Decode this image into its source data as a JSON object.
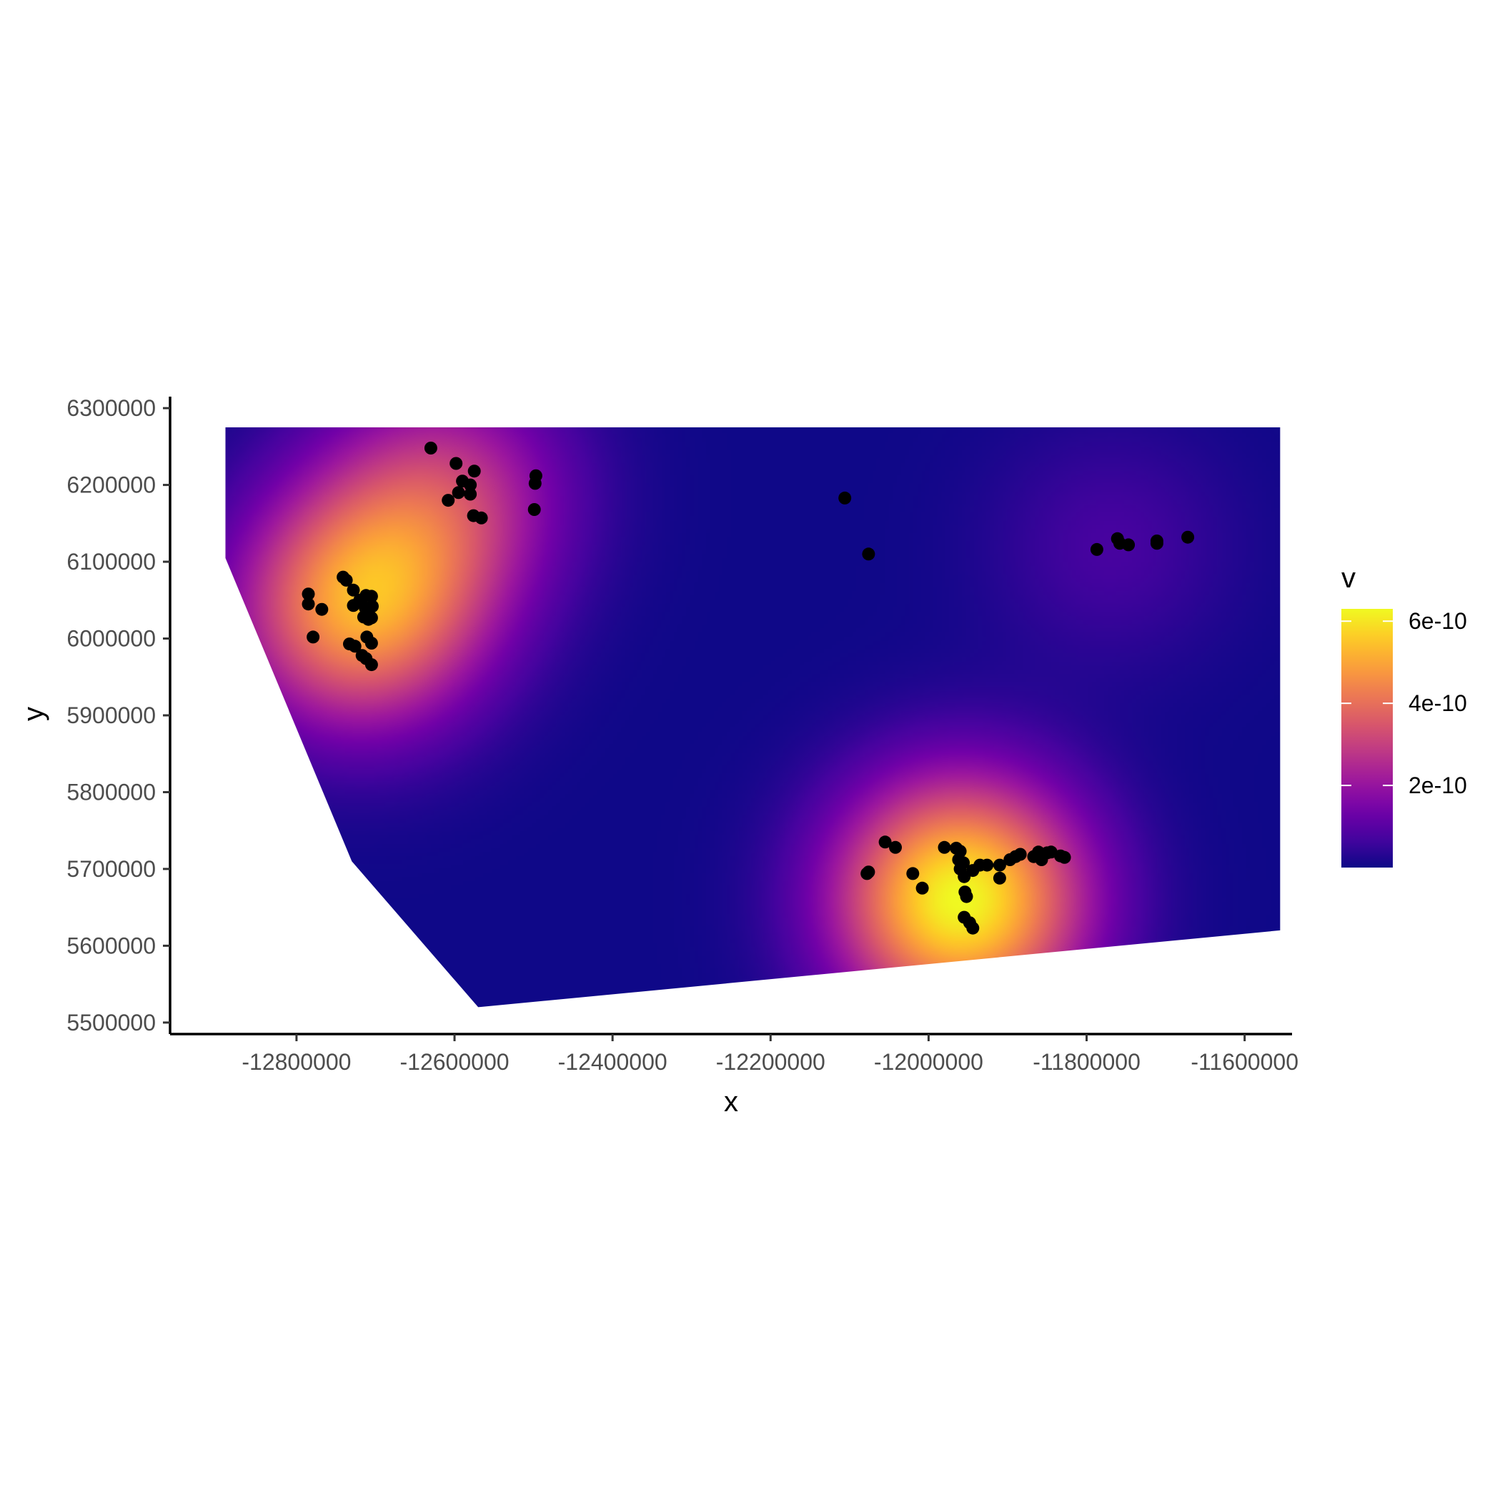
{
  "chart_data": {
    "type": "heatmap",
    "title": "",
    "xlabel": "x",
    "ylabel": "y",
    "xlim": [
      -12960000,
      -11540000
    ],
    "ylim": [
      5485000,
      6315000
    ],
    "x_ticks": [
      -12800000,
      -12600000,
      -12400000,
      -12200000,
      -12000000,
      -11800000,
      -11600000
    ],
    "x_tick_labels": [
      "-12800000",
      "-12600000",
      "-12400000",
      "-12200000",
      "-12000000",
      "-11800000",
      "-11600000"
    ],
    "y_ticks": [
      5500000,
      5600000,
      5700000,
      5800000,
      5900000,
      6000000,
      6100000,
      6200000,
      6300000
    ],
    "y_tick_labels": [
      "5500000",
      "5600000",
      "5700000",
      "5800000",
      "5900000",
      "6000000",
      "6100000",
      "6200000",
      "6300000"
    ],
    "grid": false,
    "colorscale": "plasma",
    "colorscale_colors": [
      "#0d0887",
      "#46039f",
      "#7201a8",
      "#9c179e",
      "#bd3786",
      "#d8576b",
      "#ed7953",
      "#fb9f3a",
      "#fdca26",
      "#f0f921"
    ],
    "legend": {
      "title": "v",
      "position": "right",
      "range": [
        0,
        6.3e-10
      ],
      "breaks": [
        2e-10,
        4e-10,
        6e-10
      ],
      "labels": [
        "2e-10",
        "4e-10",
        "6e-10"
      ]
    },
    "surface_boundary": [
      [
        -12890000,
        6275000
      ],
      [
        -11555000,
        6275000
      ],
      [
        -11555000,
        5620000
      ],
      [
        -12570000,
        5520000
      ],
      [
        -12730000,
        5710000
      ],
      [
        -12890000,
        6105000
      ]
    ],
    "surface_peaks": [
      {
        "x": -12720000,
        "y": 6040000,
        "v": 4.8e-10
      },
      {
        "x": -12610000,
        "y": 6190000,
        "v": 2.5e-10
      },
      {
        "x": -11960000,
        "y": 5660000,
        "v": 6.3e-10
      },
      {
        "x": -11770000,
        "y": 6120000,
        "v": 7e-11
      }
    ],
    "points": [
      {
        "x": -12630000,
        "y": 6248000
      },
      {
        "x": -12598000,
        "y": 6228000
      },
      {
        "x": -12590000,
        "y": 6205000
      },
      {
        "x": -12575000,
        "y": 6218000
      },
      {
        "x": -12580000,
        "y": 6200000
      },
      {
        "x": -12595000,
        "y": 6190000
      },
      {
        "x": -12608000,
        "y": 6180000
      },
      {
        "x": -12580000,
        "y": 6188000
      },
      {
        "x": -12576000,
        "y": 6160000
      },
      {
        "x": -12566000,
        "y": 6157000
      },
      {
        "x": -12497000,
        "y": 6212000
      },
      {
        "x": -12498000,
        "y": 6202000
      },
      {
        "x": -12499000,
        "y": 6168000
      },
      {
        "x": -12741000,
        "y": 6080000
      },
      {
        "x": -12737000,
        "y": 6076000
      },
      {
        "x": -12728000,
        "y": 6063000
      },
      {
        "x": -12720000,
        "y": 6050000
      },
      {
        "x": -12712000,
        "y": 6056000
      },
      {
        "x": -12705000,
        "y": 6055000
      },
      {
        "x": -12728000,
        "y": 6043000
      },
      {
        "x": -12713000,
        "y": 6040000
      },
      {
        "x": -12704000,
        "y": 6042000
      },
      {
        "x": -12715000,
        "y": 6028000
      },
      {
        "x": -12709000,
        "y": 6025000
      },
      {
        "x": -12705000,
        "y": 6027000
      },
      {
        "x": -12785000,
        "y": 6058000
      },
      {
        "x": -12785000,
        "y": 6045000
      },
      {
        "x": -12768000,
        "y": 6038000
      },
      {
        "x": -12779000,
        "y": 6002000
      },
      {
        "x": -12733000,
        "y": 5993000
      },
      {
        "x": -12726000,
        "y": 5990000
      },
      {
        "x": -12711000,
        "y": 6002000
      },
      {
        "x": -12705000,
        "y": 5994000
      },
      {
        "x": -12717000,
        "y": 5978000
      },
      {
        "x": -12712000,
        "y": 5974000
      },
      {
        "x": -12705000,
        "y": 5966000
      },
      {
        "x": -12106000,
        "y": 6183000
      },
      {
        "x": -12076000,
        "y": 6110000
      },
      {
        "x": -11787000,
        "y": 6116000
      },
      {
        "x": -11761000,
        "y": 6130000
      },
      {
        "x": -11758000,
        "y": 6124000
      },
      {
        "x": -11747000,
        "y": 6122000
      },
      {
        "x": -11711000,
        "y": 6127000
      },
      {
        "x": -11711000,
        "y": 6124000
      },
      {
        "x": -11672000,
        "y": 6132000
      },
      {
        "x": -12055000,
        "y": 5735000
      },
      {
        "x": -12042000,
        "y": 5728000
      },
      {
        "x": -12078000,
        "y": 5694000
      },
      {
        "x": -12076000,
        "y": 5696000
      },
      {
        "x": -12020000,
        "y": 5694000
      },
      {
        "x": -12008000,
        "y": 5675000
      },
      {
        "x": -11980000,
        "y": 5728000
      },
      {
        "x": -11965000,
        "y": 5727000
      },
      {
        "x": -11960000,
        "y": 5723000
      },
      {
        "x": -11962000,
        "y": 5712000
      },
      {
        "x": -11956000,
        "y": 5708000
      },
      {
        "x": -11960000,
        "y": 5700000
      },
      {
        "x": -11955000,
        "y": 5690000
      },
      {
        "x": -11944000,
        "y": 5698000
      },
      {
        "x": -11935000,
        "y": 5705000
      },
      {
        "x": -11926000,
        "y": 5705000
      },
      {
        "x": -11954000,
        "y": 5670000
      },
      {
        "x": -11952000,
        "y": 5664000
      },
      {
        "x": -11955000,
        "y": 5637000
      },
      {
        "x": -11948000,
        "y": 5630000
      },
      {
        "x": -11944000,
        "y": 5623000
      },
      {
        "x": -11910000,
        "y": 5705000
      },
      {
        "x": -11910000,
        "y": 5688000
      },
      {
        "x": -11897000,
        "y": 5712000
      },
      {
        "x": -11890000,
        "y": 5716000
      },
      {
        "x": -11884000,
        "y": 5719000
      },
      {
        "x": -11867000,
        "y": 5716000
      },
      {
        "x": -11861000,
        "y": 5722000
      },
      {
        "x": -11857000,
        "y": 5712000
      },
      {
        "x": -11850000,
        "y": 5721000
      },
      {
        "x": -11845000,
        "y": 5722000
      },
      {
        "x": -11833000,
        "y": 5717000
      },
      {
        "x": -11828000,
        "y": 5715000
      }
    ]
  }
}
